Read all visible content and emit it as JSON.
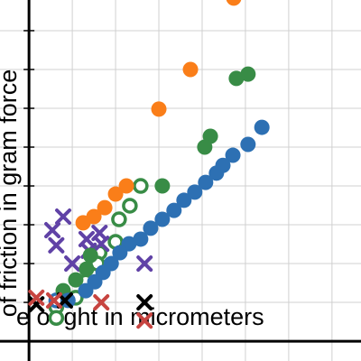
{
  "chart_data": {
    "type": "scatter",
    "x_label": "e of ght in micrometers",
    "y_label": "of friction in gram force",
    "xlim": [
      -0.67,
      7.67
    ],
    "ylim": [
      -0.51,
      8.79
    ],
    "xticks": [
      0,
      1,
      2,
      3,
      4,
      5,
      6,
      7
    ],
    "yticks": [
      0,
      1,
      2,
      3,
      4,
      5,
      6,
      7,
      8
    ],
    "grid": true,
    "series": [
      {
        "color": "#388c46",
        "marker": "open-circle",
        "x": [
          2.58,
          2.33,
          2.08,
          2.0,
          1.63,
          1.58,
          1.31,
          1.08,
          0.63,
          0.63
        ],
        "values": [
          4.0,
          3.49,
          3.14,
          2.56,
          2.28,
          2.0,
          1.53,
          1.12,
          0.88,
          0.6
        ]
      },
      {
        "color": "#2d70b3",
        "marker": "open-circle",
        "x": [
          0.63
        ],
        "values": [
          1.05
        ]
      },
      {
        "color": "#6042a6",
        "marker": "cross",
        "x": [
          0.79,
          0.54,
          0.63,
          1.0,
          1.33,
          1.63,
          1.38,
          2.67,
          1.67
        ],
        "values": [
          3.21,
          2.86,
          2.47,
          2.0,
          2.63,
          2.79,
          2.33,
          2.0,
          2.51
        ]
      },
      {
        "color": "#fa7e19",
        "marker": "circle",
        "x": [
          4.73,
          3.73,
          3.0,
          2.25,
          2.0,
          1.75,
          1.5,
          1.25
        ],
        "values": [
          8.84,
          7.0,
          5.98,
          4.0,
          3.79,
          3.44,
          3.21,
          3.05
        ]
      },
      {
        "color": "#388c46",
        "marker": "circle",
        "x": [
          5.06,
          4.79,
          4.19,
          4.06,
          3.08,
          1.42,
          1.33,
          1.08,
          0.79
        ],
        "values": [
          6.88,
          6.77,
          5.28,
          5.0,
          4.0,
          2.21,
          1.86,
          1.58,
          1.3
        ]
      },
      {
        "color": "#2d70b3",
        "marker": "circle",
        "x": [
          5.38,
          5.06,
          4.71,
          4.48,
          4.33,
          4.08,
          3.83,
          3.58,
          3.35,
          3.08,
          2.81,
          2.58,
          2.31,
          2.1,
          1.9,
          1.71,
          1.52,
          1.31,
          0.9
        ],
        "values": [
          5.51,
          5.07,
          4.79,
          4.53,
          4.33,
          4.09,
          3.84,
          3.63,
          3.37,
          3.14,
          2.91,
          2.63,
          2.51,
          2.28,
          2.0,
          1.77,
          1.53,
          1.3,
          1.05
        ]
      },
      {
        "color": "#000000",
        "marker": "cross",
        "x": [
          2.67,
          0.83,
          0.17
        ],
        "values": [
          1.0,
          1.05,
          0.95
        ]
      },
      {
        "color": "#c74440",
        "marker": "cross",
        "x": [
          0.17,
          0.58,
          1.67,
          2.67
        ],
        "values": [
          1.12,
          1.05,
          1.0,
          0.53
        ]
      }
    ]
  }
}
